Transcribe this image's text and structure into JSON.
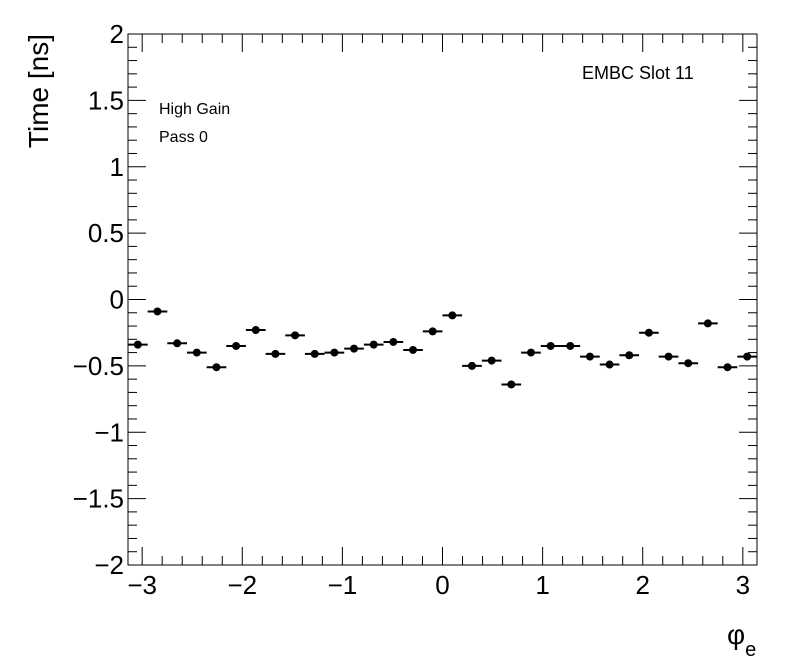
{
  "chart_data": {
    "type": "scatter",
    "title": "",
    "xlabel": "φ",
    "xlabel_sub": "e",
    "ylabel": "Time [ns]",
    "xlim": [
      -3.1416,
      3.1416
    ],
    "ylim": [
      -2,
      2
    ],
    "x_ticks": [
      {
        "value": -3,
        "label": "−3"
      },
      {
        "value": -2,
        "label": "−2"
      },
      {
        "value": -1,
        "label": "−1"
      },
      {
        "value": 0,
        "label": "0"
      },
      {
        "value": 1,
        "label": "1"
      },
      {
        "value": 2,
        "label": "2"
      },
      {
        "value": 3,
        "label": "3"
      }
    ],
    "y_ticks": [
      {
        "value": -2,
        "label": "−2"
      },
      {
        "value": -1.5,
        "label": "−1.5"
      },
      {
        "value": -1,
        "label": "−1"
      },
      {
        "value": -0.5,
        "label": "−0.5"
      },
      {
        "value": 0,
        "label": "0"
      },
      {
        "value": 0.5,
        "label": "0.5"
      },
      {
        "value": 1,
        "label": "1"
      },
      {
        "value": 1.5,
        "label": "1.5"
      },
      {
        "value": 2,
        "label": "2"
      }
    ],
    "bin_width": 0.19635,
    "annotations": [
      "EMBC Slot 11",
      "High Gain",
      "Pass 0"
    ],
    "series": [
      {
        "x": [
          -3.0434,
          -2.8471,
          -2.6507,
          -2.4544,
          -2.258,
          -2.0617,
          -1.8653,
          -1.669,
          -1.4726,
          -1.2763,
          -1.0799,
          -0.8836,
          -0.6872,
          -0.4909,
          -0.2945,
          -0.0982,
          0.0982,
          0.2945,
          0.4909,
          0.6872,
          0.8836,
          1.0799,
          1.2763,
          1.4726,
          1.669,
          1.8653,
          2.0617,
          2.258,
          2.4544,
          2.6507,
          2.8471,
          3.0434
        ],
        "y": [
          -0.34,
          -0.09,
          -0.33,
          -0.4,
          -0.51,
          -0.35,
          -0.23,
          -0.41,
          -0.27,
          -0.41,
          -0.4,
          -0.37,
          -0.34,
          -0.32,
          -0.38,
          -0.24,
          -0.12,
          -0.5,
          -0.46,
          -0.64,
          -0.4,
          -0.35,
          -0.35,
          -0.43,
          -0.49,
          -0.42,
          -0.25,
          -0.43,
          -0.48,
          -0.18,
          -0.51,
          -0.43
        ]
      }
    ]
  }
}
